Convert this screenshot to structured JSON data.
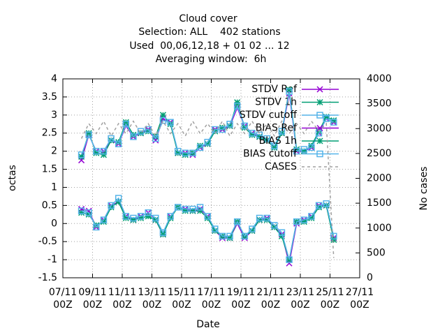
{
  "chart_data": {
    "type": "line",
    "title": [
      "Cloud cover",
      "Selection: ALL    402 stations",
      "Used  00,06,12,18 + 01 02 ... 12",
      "Averaging window:  6h"
    ],
    "xlabel": "Date",
    "ylabel": "octas",
    "y2label": "No cases",
    "x": [
      "08/11 06Z",
      "08/11 18Z",
      "09/11 06Z",
      "09/11 18Z",
      "10/11 06Z",
      "10/11 18Z",
      "11/11 06Z",
      "11/11 18Z",
      "12/11 06Z",
      "12/11 18Z",
      "13/11 06Z",
      "13/11 18Z",
      "14/11 06Z",
      "14/11 18Z",
      "15/11 06Z",
      "15/11 18Z",
      "16/11 06Z",
      "16/11 18Z",
      "17/11 06Z",
      "17/11 18Z",
      "18/11 06Z",
      "18/11 18Z",
      "19/11 06Z",
      "19/11 18Z",
      "20/11 06Z",
      "20/11 18Z",
      "21/11 06Z",
      "21/11 18Z",
      "22/11 06Z",
      "22/11 18Z",
      "23/11 06Z",
      "23/11 18Z",
      "24/11 06Z",
      "24/11 18Z",
      "25/11 06Z"
    ],
    "xlim": [
      "07/11 00Z",
      "27/11 00Z"
    ],
    "xticks": [
      "07/11 00Z",
      "09/11 00Z",
      "11/11 00Z",
      "13/11 00Z",
      "15/11 00Z",
      "17/11 00Z",
      "19/11 00Z",
      "21/11 00Z",
      "23/11 00Z",
      "25/11 00Z",
      "27/11 00Z"
    ],
    "ylim": [
      -1.5,
      4
    ],
    "yticks": [
      -1.5,
      -1,
      -0.5,
      0,
      0.5,
      1,
      1.5,
      2,
      2.5,
      3,
      3.5,
      4
    ],
    "y2lim": [
      0,
      4000
    ],
    "y2ticks": [
      0,
      500,
      1000,
      1500,
      2000,
      2500,
      3000,
      3500,
      4000
    ],
    "grid": true,
    "legend": "top right",
    "series": [
      {
        "name": "STDV Ref",
        "color": "#9400d3",
        "marker": "x",
        "values": [
          1.75,
          2.45,
          2.0,
          2.0,
          2.3,
          2.2,
          2.7,
          2.4,
          2.5,
          2.6,
          2.3,
          2.9,
          2.8,
          1.95,
          1.95,
          1.9,
          2.1,
          2.2,
          2.6,
          2.6,
          2.7,
          3.2,
          2.7,
          2.5,
          2.4,
          2.3,
          2.1,
          2.5,
          3.6,
          2.0,
          2.0,
          2.1,
          2.5,
          2.9,
          2.8
        ]
      },
      {
        "name": "STDV 1h",
        "color": "#009e73",
        "marker": "star",
        "values": [
          1.85,
          2.5,
          1.95,
          1.9,
          2.3,
          2.25,
          2.8,
          2.45,
          2.5,
          2.55,
          2.4,
          3.0,
          2.75,
          1.95,
          1.9,
          1.95,
          2.15,
          2.2,
          2.55,
          2.65,
          2.7,
          3.35,
          2.65,
          2.45,
          2.4,
          2.3,
          2.1,
          2.5,
          3.7,
          2.05,
          2.0,
          2.15,
          2.55,
          2.95,
          2.85
        ]
      },
      {
        "name": "STDV cutoff",
        "color": "#56b4e9",
        "marker": "square",
        "values": [
          1.9,
          2.45,
          2.0,
          2.0,
          2.35,
          2.2,
          2.75,
          2.4,
          2.55,
          2.6,
          2.35,
          2.85,
          2.8,
          2.0,
          1.95,
          1.95,
          2.1,
          2.25,
          2.6,
          2.6,
          2.75,
          3.25,
          2.7,
          2.5,
          2.45,
          2.35,
          2.15,
          2.55,
          3.65,
          2.0,
          2.05,
          2.1,
          2.5,
          2.9,
          2.8
        ]
      },
      {
        "name": "BIAS Ref",
        "color": "#9400d3",
        "marker": "x",
        "values": [
          0.4,
          0.35,
          -0.1,
          0.1,
          0.5,
          0.6,
          0.2,
          0.1,
          0.2,
          0.3,
          0.1,
          -0.3,
          0.2,
          0.45,
          0.4,
          0.35,
          0.4,
          0.2,
          -0.2,
          -0.4,
          -0.4,
          0.0,
          -0.4,
          -0.2,
          0.1,
          0.15,
          -0.1,
          -0.3,
          -1.1,
          0.0,
          0.1,
          0.2,
          0.5,
          0.5,
          -0.4
        ]
      },
      {
        "name": "BIAS 1h",
        "color": "#009e73",
        "marker": "star",
        "values": [
          0.3,
          0.25,
          -0.05,
          0.05,
          0.45,
          0.6,
          0.15,
          0.1,
          0.15,
          0.2,
          0.1,
          -0.3,
          0.15,
          0.45,
          0.35,
          0.35,
          0.35,
          0.15,
          -0.2,
          -0.35,
          -0.4,
          0.05,
          -0.35,
          -0.2,
          0.1,
          0.1,
          -0.1,
          -0.35,
          -1.0,
          0.05,
          0.05,
          0.15,
          0.45,
          0.5,
          -0.45
        ]
      },
      {
        "name": "BIAS cutoff",
        "color": "#56b4e9",
        "marker": "square",
        "values": [
          0.35,
          0.3,
          -0.1,
          0.1,
          0.5,
          0.7,
          0.2,
          0.15,
          0.2,
          0.3,
          0.15,
          -0.25,
          0.2,
          0.45,
          0.4,
          0.4,
          0.45,
          0.2,
          -0.15,
          -0.35,
          -0.35,
          0.05,
          -0.35,
          -0.15,
          0.15,
          0.15,
          -0.05,
          -0.25,
          -1.0,
          0.05,
          0.1,
          0.2,
          0.5,
          0.55,
          -0.35
        ]
      },
      {
        "name": "CASES",
        "color": "#a0a0a0",
        "marker": "none",
        "dash": true,
        "axis": "y2",
        "values": [
          2800,
          3100,
          2900,
          3150,
          2850,
          3100,
          2900,
          3150,
          2900,
          3100,
          2850,
          3150,
          2900,
          3100,
          2850,
          3150,
          2900,
          3100,
          2900,
          3150,
          2850,
          3100,
          2900,
          3150,
          2900,
          3100,
          2850,
          3150,
          2900,
          3100,
          2900,
          3150,
          2950,
          3100,
          400
        ]
      }
    ]
  }
}
